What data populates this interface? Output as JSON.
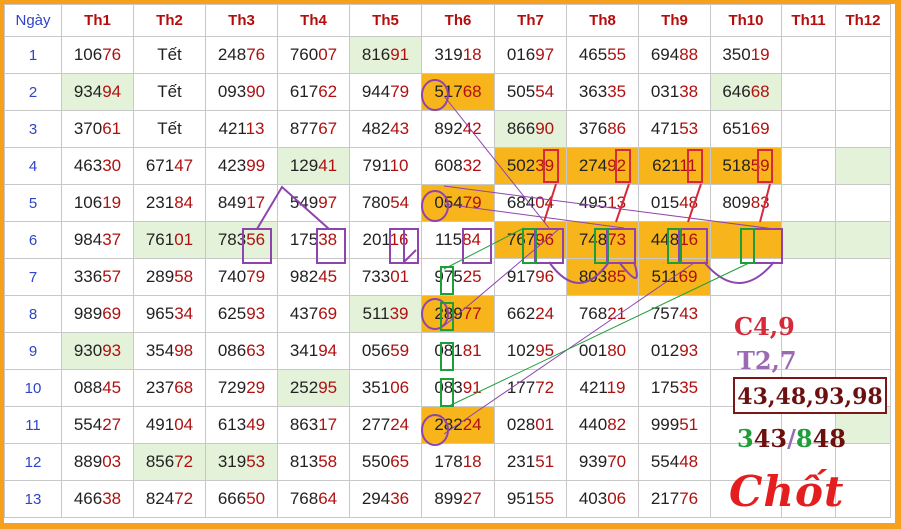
{
  "headers": [
    "Ngày",
    "Th1",
    "Th2",
    "Th3",
    "Th4",
    "Th5",
    "Th6",
    "Th7",
    "Th8",
    "Th9",
    "Th10",
    "Th11",
    "Th12"
  ],
  "rows": [
    {
      "day": "1",
      "cells": [
        "10676",
        "Tết",
        "24876",
        "76007",
        "81691",
        "31918",
        "01697",
        "46555",
        "69488",
        "35019",
        "",
        ""
      ]
    },
    {
      "day": "2",
      "cells": [
        "93494",
        "Tết",
        "09390",
        "61762",
        "94479",
        "51768",
        "50554",
        "36335",
        "03138",
        "64668",
        "",
        ""
      ]
    },
    {
      "day": "3",
      "cells": [
        "37061",
        "Tết",
        "42113",
        "87767",
        "48243",
        "89242",
        "86690",
        "37686",
        "47153",
        "65169",
        "",
        ""
      ]
    },
    {
      "day": "4",
      "cells": [
        "46330",
        "67147",
        "42399",
        "12941",
        "79110",
        "60832",
        "50239",
        "27492",
        "62111",
        "51859",
        "",
        ""
      ]
    },
    {
      "day": "5",
      "cells": [
        "10619",
        "23184",
        "84917",
        "54997",
        "78054",
        "05479",
        "68404",
        "49513",
        "01548",
        "80983",
        "",
        ""
      ]
    },
    {
      "day": "6",
      "cells": [
        "98437",
        "76101",
        "78356",
        "17538",
        "20116",
        "11584",
        "76796",
        "74873",
        "44816",
        "",
        "",
        ""
      ]
    },
    {
      "day": "7",
      "cells": [
        "33657",
        "28958",
        "74079",
        "98245",
        "73301",
        "97525",
        "91796",
        "80385",
        "51169",
        "",
        "",
        ""
      ]
    },
    {
      "day": "8",
      "cells": [
        "98969",
        "96534",
        "62593",
        "43769",
        "51139",
        "28977",
        "66224",
        "76821",
        "75743",
        "",
        "",
        ""
      ]
    },
    {
      "day": "9",
      "cells": [
        "93093",
        "35498",
        "08663",
        "34194",
        "05659",
        "08181",
        "10295",
        "00180",
        "01293",
        "",
        "",
        ""
      ]
    },
    {
      "day": "10",
      "cells": [
        "08845",
        "23768",
        "72929",
        "25295",
        "35106",
        "08391",
        "17772",
        "42119",
        "17535",
        "",
        "",
        ""
      ]
    },
    {
      "day": "11",
      "cells": [
        "55427",
        "49104",
        "61349",
        "86317",
        "27724",
        "28224",
        "02801",
        "44082",
        "99951",
        "",
        "",
        ""
      ]
    },
    {
      "day": "12",
      "cells": [
        "88903",
        "85672",
        "31953",
        "81358",
        "55065",
        "17818",
        "23151",
        "93970",
        "55448",
        "",
        "",
        ""
      ]
    },
    {
      "day": "13",
      "cells": [
        "46638",
        "82472",
        "66650",
        "76864",
        "29436",
        "89927",
        "95155",
        "40306",
        "21776",
        "",
        "",
        ""
      ]
    }
  ],
  "notes": {
    "c": "C4,9",
    "t": "T2,7",
    "boxed": "43,48,93,98",
    "p_a": "3",
    "p_b": "43",
    "p_sep": "/",
    "p_c": "8",
    "p_d": "48",
    "chot": "Chốt"
  },
  "colors": {
    "border": "#f7a01d",
    "highlight_orange": "#f7b51b",
    "highlight_green": "#e4f2da",
    "header_red": "#b40d0d",
    "day_blue": "#2f44c6"
  }
}
